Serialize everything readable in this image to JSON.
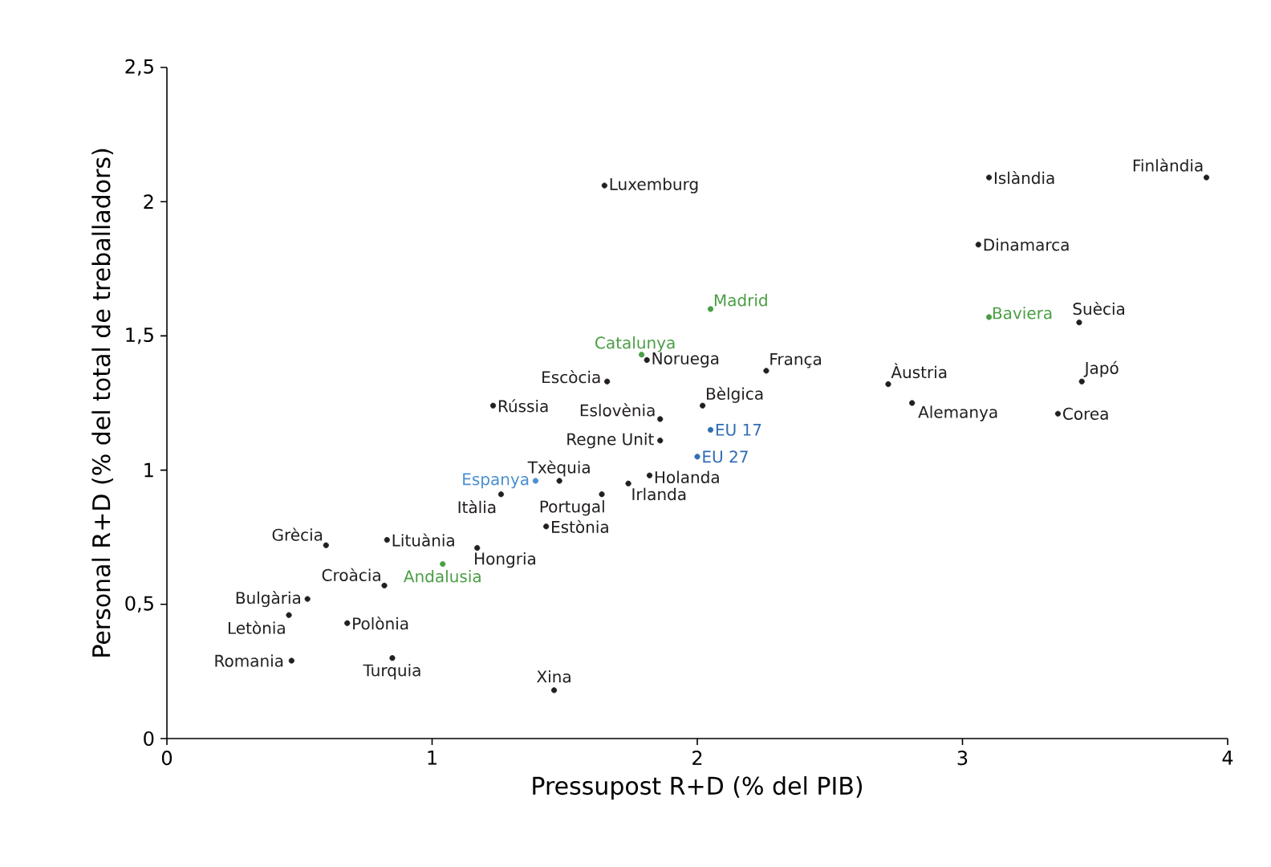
{
  "chart_data": {
    "type": "scatter",
    "xlabel": "Pressupost R+D (% del PIB)",
    "ylabel": "Personal R+D (% del total de treballadors)",
    "xlim": [
      0,
      4
    ],
    "ylim": [
      0,
      2.5
    ],
    "xticks": [
      0,
      1,
      2,
      3,
      4
    ],
    "yticks": [
      0,
      {
        "value": 0.5,
        "label": "0,5"
      },
      1,
      {
        "value": 1.5,
        "label": "1,5"
      },
      2,
      {
        "value": 2.5,
        "label": "2,5"
      }
    ],
    "grid": false,
    "marker": "circle",
    "series": [
      {
        "color": "#231f20",
        "x": [
          3.92,
          3.1,
          3.06,
          3.44,
          2.72,
          3.45,
          2.81,
          3.36,
          1.65,
          1.81,
          2.26,
          1.66,
          1.23,
          2.02,
          1.86,
          1.86,
          1.48,
          1.82,
          1.74,
          1.64,
          1.26,
          1.43,
          1.17,
          0.6,
          0.83,
          0.82,
          0.53,
          0.46,
          0.68,
          0.47,
          0.85,
          1.46
        ],
        "values": [
          2.09,
          2.09,
          1.84,
          1.55,
          1.32,
          1.33,
          1.25,
          1.21,
          2.06,
          1.41,
          1.37,
          1.33,
          1.24,
          1.24,
          1.19,
          1.11,
          0.96,
          0.98,
          0.95,
          0.91,
          0.91,
          0.79,
          0.71,
          0.72,
          0.74,
          0.57,
          0.52,
          0.46,
          0.43,
          0.29,
          0.3,
          0.18
        ],
        "value_labels": [
          "Finlàndia",
          "Islàndia",
          "Dinamarca",
          "Suècia",
          "Àustria",
          "Japó",
          "Alemanya",
          "Corea",
          "Luxemburg",
          "Noruega",
          "França",
          "Escòcia",
          "Rússia",
          "Bèlgica",
          "Eslovènia",
          "Regne Unit",
          "Txèquia",
          "Holanda",
          "Irlanda",
          "Portugal",
          "Itàlia",
          "Estònia",
          "Hongria",
          "Grècia",
          "Lituània",
          "Croàcia",
          "Bulgària",
          "Letònia",
          "Polònia",
          "Romania",
          "Turquia",
          "Xina"
        ]
      },
      {
        "color": "#4a9e45",
        "x": [
          2.05,
          1.79,
          3.1,
          1.04
        ],
        "values": [
          1.6,
          1.43,
          1.57,
          0.65
        ],
        "value_labels": [
          "Madrid",
          "Catalunya",
          "Baviera",
          "Andalusia"
        ]
      },
      {
        "color": "#2f6db5",
        "x": [
          2.05,
          2.0
        ],
        "values": [
          1.15,
          1.05
        ],
        "value_labels": [
          "EU 17",
          "EU 27"
        ]
      },
      {
        "color": "#4a90d0",
        "x": [
          1.39
        ],
        "values": [
          0.96
        ],
        "value_labels": [
          "Espanya"
        ]
      }
    ]
  }
}
